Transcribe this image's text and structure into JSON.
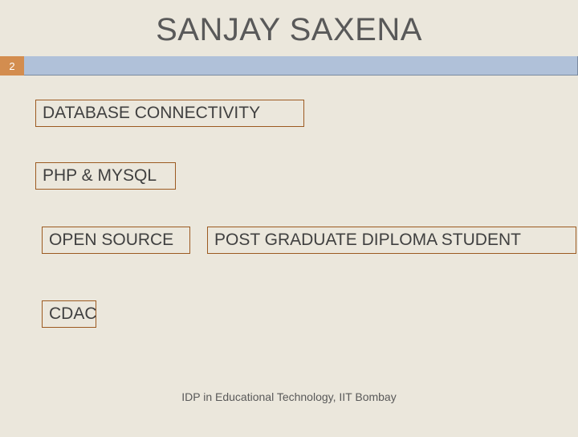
{
  "title": "SANJAY SAXENA",
  "page_number": "2",
  "boxes": {
    "db": "DATABASE CONNECTIVITY",
    "php": "PHP & MYSQL",
    "open_source": "OPEN SOURCE",
    "pgd": "POST GRADUATE DIPLOMA STUDENT",
    "cdac": "CDAC"
  },
  "footer": "IDP in Educational Technology, IIT Bombay",
  "colors": {
    "background": "#ebe7dc",
    "box_border": "#9c5a21",
    "page_number_bg": "#d38d4f",
    "blue_bar": "#b0c1d9",
    "title_color": "#595959",
    "text_color": "#404040"
  },
  "box_styling": {
    "border_width": 1.5,
    "font_size": 21
  }
}
